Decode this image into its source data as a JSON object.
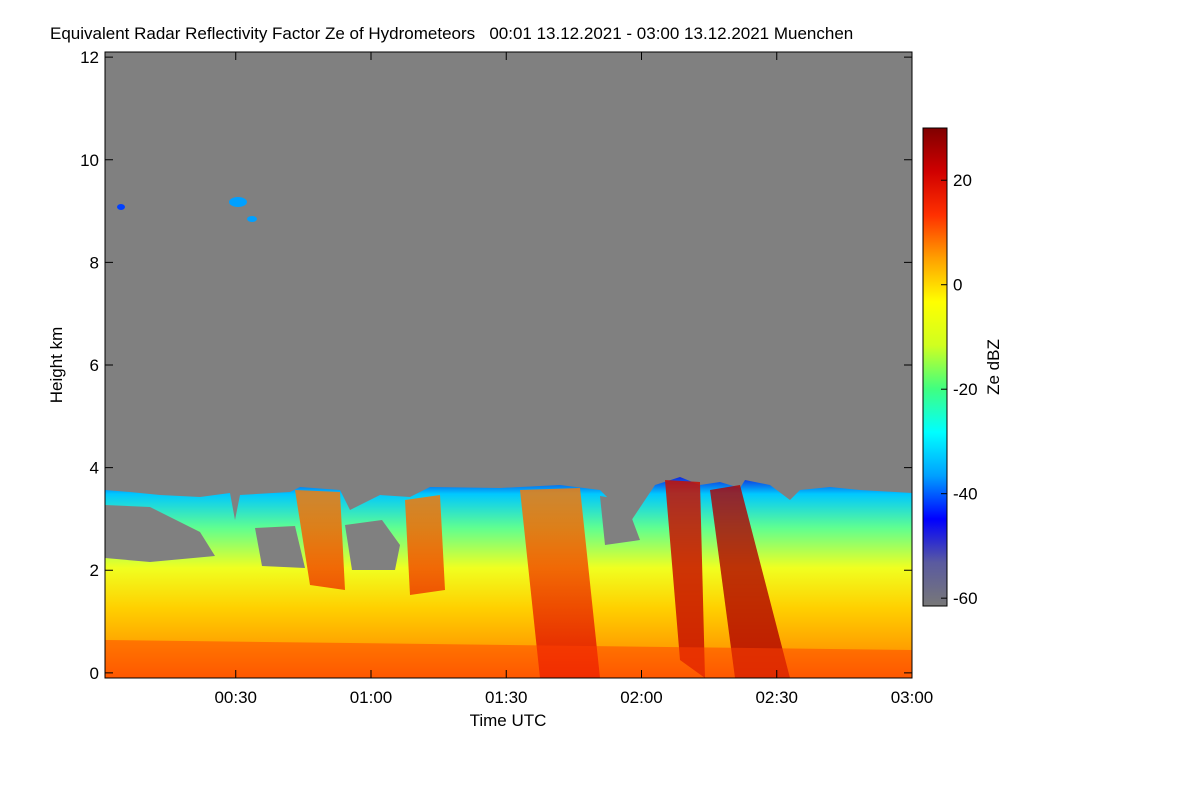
{
  "chart_data": {
    "type": "heatmap",
    "title": "Equivalent Radar Reflectivity Factor Ze of Hydrometeors   00:01 13.12.2021 - 03:00 13.12.2021 Muenchen",
    "x_label": "Time UTC",
    "y_label": "Height km",
    "colorbar_label": "Ze dBZ",
    "xlim": [
      1,
      180
    ],
    "xticks": [
      {
        "value": 30,
        "label": "00:30"
      },
      {
        "value": 60,
        "label": "01:00"
      },
      {
        "value": 90,
        "label": "01:30"
      },
      {
        "value": 120,
        "label": "02:00"
      },
      {
        "value": 150,
        "label": "02:30"
      },
      {
        "value": 180,
        "label": "03:00"
      }
    ],
    "ylim": [
      -0.1,
      12.1
    ],
    "yticks": [
      0,
      2,
      4,
      6,
      8,
      10,
      12
    ],
    "clim": [
      -61.5,
      30
    ],
    "cticks": [
      -60,
      -40,
      -20,
      0,
      20
    ],
    "colorscale": [
      "#787878",
      "#5a5aa0",
      "#0000ff",
      "#00a0ff",
      "#00ffff",
      "#40ff80",
      "#d0ff20",
      "#ffff00",
      "#ffa000",
      "#ff3000",
      "#d00000",
      "#800000"
    ]
  }
}
